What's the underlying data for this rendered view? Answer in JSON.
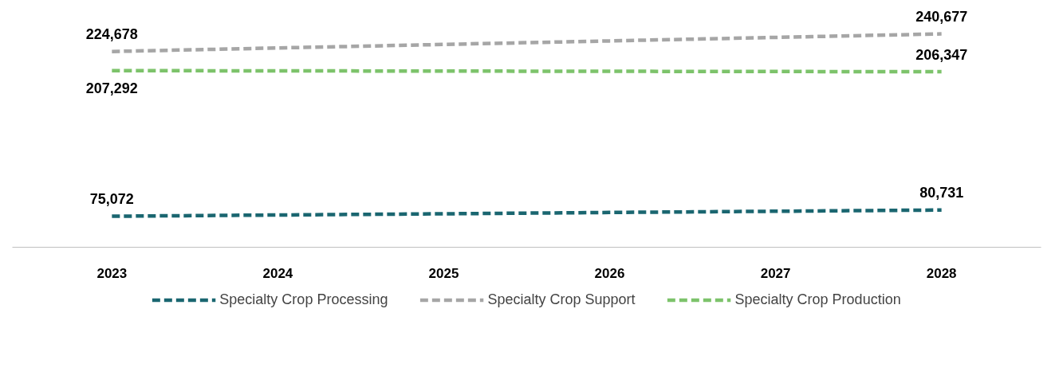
{
  "chart_data": {
    "type": "line",
    "categories": [
      "2023",
      "2024",
      "2025",
      "2026",
      "2027",
      "2028"
    ],
    "series": [
      {
        "name": "Specialty Crop Processing",
        "color": "#1a6670",
        "values": [
          75072,
          76200,
          77300,
          78500,
          79600,
          80731
        ],
        "value_labels": [
          "75,072",
          null,
          null,
          null,
          null,
          "80,731"
        ]
      },
      {
        "name": "Specialty Crop Support",
        "color": "#a6a6a6",
        "values": [
          224678,
          227900,
          231100,
          234300,
          237500,
          240677
        ],
        "value_labels": [
          "224,678",
          null,
          null,
          null,
          null,
          "240,677"
        ]
      },
      {
        "name": "Specialty Crop Production",
        "color": "#7dc36b",
        "values": [
          207292,
          207100,
          206900,
          206700,
          206500,
          206347
        ],
        "value_labels": [
          "207,292",
          null,
          null,
          null,
          null,
          "206,347"
        ]
      }
    ],
    "tick_labels": "x",
    "grid": false,
    "legend": "bottom",
    "line_style": "dashed",
    "marker": "none"
  }
}
